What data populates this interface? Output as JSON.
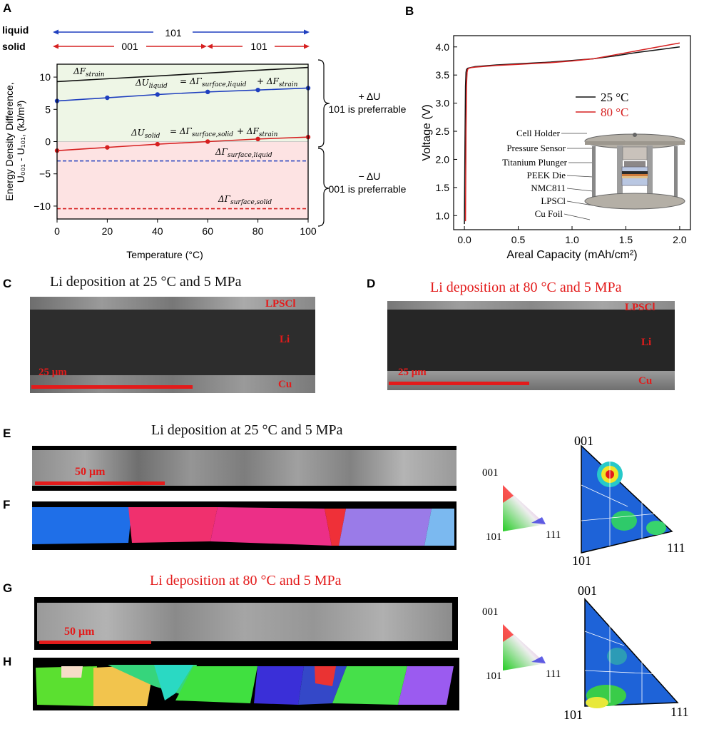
{
  "panels": {
    "A": {
      "letter": "A",
      "phase_rows": {
        "liquid_label": "liquid",
        "liquid_range": "101",
        "solid_label": "solid",
        "solid_low": "001",
        "solid_high": "101"
      },
      "ylabel_line1": "Energy Density Difference,",
      "ylabel_line2": "U₀₀₁ - U₁₀₁, (kJ/m³)",
      "xlabel": "Temperature (°C)",
      "annotations": {
        "f_strain": "ΔF",
        "f_strain_sub": "strain",
        "u_liquid_lhs": "ΔU",
        "u_liquid_lhs_sub": "liquid",
        "u_liquid_rhs": "= ΔΓ",
        "u_liquid_rhs_sub": "surface,liquid",
        "u_liquid_plus": " + ΔF",
        "u_liquid_plus_sub": "strain",
        "u_solid_lhs": "ΔU",
        "u_solid_lhs_sub": "solid",
        "u_solid_rhs": "= ΔΓ",
        "u_solid_rhs_sub": "surface,solid",
        "u_solid_plus": "+ ΔF",
        "u_solid_plus_sub": "strain",
        "g_liquid": "ΔΓ",
        "g_liquid_sub": "surface,liquid",
        "g_solid": "ΔΓ",
        "g_solid_sub": "surface,solid"
      },
      "brace_top_line1": "+ ΔU",
      "brace_top_line2": "101 is preferrable",
      "brace_bottom_line1": "− ΔU",
      "brace_bottom_line2": "001 is preferrable"
    },
    "B": {
      "letter": "B",
      "xlabel": "Areal Capacity (mAh/cm²)",
      "ylabel": "Voltage (V)",
      "legend": [
        "25 °C",
        "80 °C"
      ],
      "components": [
        "Cell Holder",
        "Pressure Sensor",
        "Titanium Plunger",
        "PEEK Die",
        "NMC811",
        "LPSCl",
        "Cu Foil"
      ]
    },
    "C": {
      "letter": "C",
      "title": "Li deposition at 25 °C and 5 MPa",
      "labels": [
        "LPSCl",
        "Li",
        "Cu"
      ],
      "scale": "25 μm"
    },
    "D": {
      "letter": "D",
      "title": "Li deposition at 80 °C and 5 MPa",
      "labels": [
        "LPSCl",
        "Li",
        "Cu"
      ],
      "scale": "25 μm"
    },
    "E": {
      "letter": "E",
      "title": "Li deposition at 25 °C and 5 MPa",
      "scale": "50 μm"
    },
    "F": {
      "letter": "F"
    },
    "G": {
      "letter": "G",
      "title": "Li deposition at 80 °C and 5 MPa",
      "scale": "50 μm"
    },
    "H": {
      "letter": "H"
    },
    "ipf": {
      "top": "001",
      "left": "101",
      "right": "111"
    }
  },
  "colors": {
    "liquid_blue": "#1f3fbf",
    "solid_red": "#d62020",
    "label_red": "#e31b1b",
    "green_fill": "#eef6e6",
    "pink_fill": "#fde3e3",
    "curve_25": "#111111",
    "curve_80": "#d62020"
  },
  "chart_data": [
    {
      "panel": "A",
      "type": "line",
      "xlabel": "Temperature (°C)",
      "ylabel": "Energy Density Difference, U001 - U101, (kJ/m³)",
      "xlim": [
        0,
        100
      ],
      "ylim": [
        -12,
        12
      ],
      "xticks": [
        0,
        20,
        40,
        60,
        80,
        100
      ],
      "yticks": [
        -10,
        -5,
        0,
        5,
        10
      ],
      "series": [
        {
          "name": "ΔF strain",
          "x": [
            0,
            100
          ],
          "y": [
            9.3,
            11.5
          ],
          "color": "#111111"
        },
        {
          "name": "ΔU liquid",
          "x": [
            0,
            20,
            40,
            60,
            80,
            100
          ],
          "y": [
            6.3,
            6.8,
            7.3,
            7.7,
            8.0,
            8.3
          ],
          "color": "#1f3fbf",
          "markers": true
        },
        {
          "name": "ΔU solid",
          "x": [
            0,
            20,
            40,
            60,
            80,
            100
          ],
          "y": [
            -1.4,
            -0.9,
            -0.4,
            0.0,
            0.4,
            0.7
          ],
          "color": "#d62020",
          "markers": true
        },
        {
          "name": "ΔΓ surface,liquid",
          "x": [
            0,
            100
          ],
          "y": [
            -3.0,
            -3.0
          ],
          "color": "#1f3fbf",
          "dashed": true
        },
        {
          "name": "ΔΓ surface,solid",
          "x": [
            0,
            100
          ],
          "y": [
            -10.4,
            -10.4
          ],
          "color": "#d62020",
          "dashed": true
        }
      ],
      "shaded_regions": [
        {
          "from": 0,
          "to": 12,
          "color": "#eef6e6"
        },
        {
          "from": -12,
          "to": 0,
          "color": "#fde3e3"
        }
      ]
    },
    {
      "panel": "B",
      "type": "line",
      "xlabel": "Areal Capacity (mAh/cm²)",
      "ylabel": "Voltage (V)",
      "xlim": [
        -0.1,
        2.1
      ],
      "ylim": [
        0.75,
        4.2
      ],
      "xticks": [
        0.0,
        0.5,
        1.0,
        1.5,
        2.0
      ],
      "yticks": [
        1.0,
        1.5,
        2.0,
        2.5,
        3.0,
        3.5,
        4.0
      ],
      "series": [
        {
          "name": "25 °C",
          "x": [
            0.0,
            0.005,
            0.01,
            0.015,
            0.02,
            0.03,
            0.05,
            0.1,
            0.3,
            0.5,
            0.8,
            1.0,
            1.2,
            1.4,
            1.6,
            1.8,
            2.0
          ],
          "y": [
            0.85,
            2.2,
            3.3,
            3.55,
            3.6,
            3.62,
            3.63,
            3.65,
            3.68,
            3.7,
            3.73,
            3.76,
            3.79,
            3.84,
            3.9,
            3.95,
            4.0
          ],
          "color": "#111111"
        },
        {
          "name": "80 °C",
          "x": [
            0.01,
            0.015,
            0.02,
            0.025,
            0.03,
            0.04,
            0.06,
            0.1,
            0.3,
            0.5,
            0.8,
            1.0,
            1.2,
            1.4,
            1.6,
            1.8,
            2.0
          ],
          "y": [
            0.9,
            2.5,
            3.35,
            3.55,
            3.6,
            3.62,
            3.63,
            3.64,
            3.67,
            3.69,
            3.72,
            3.75,
            3.79,
            3.86,
            3.93,
            4.0,
            4.07
          ],
          "color": "#d62020"
        }
      ]
    }
  ]
}
